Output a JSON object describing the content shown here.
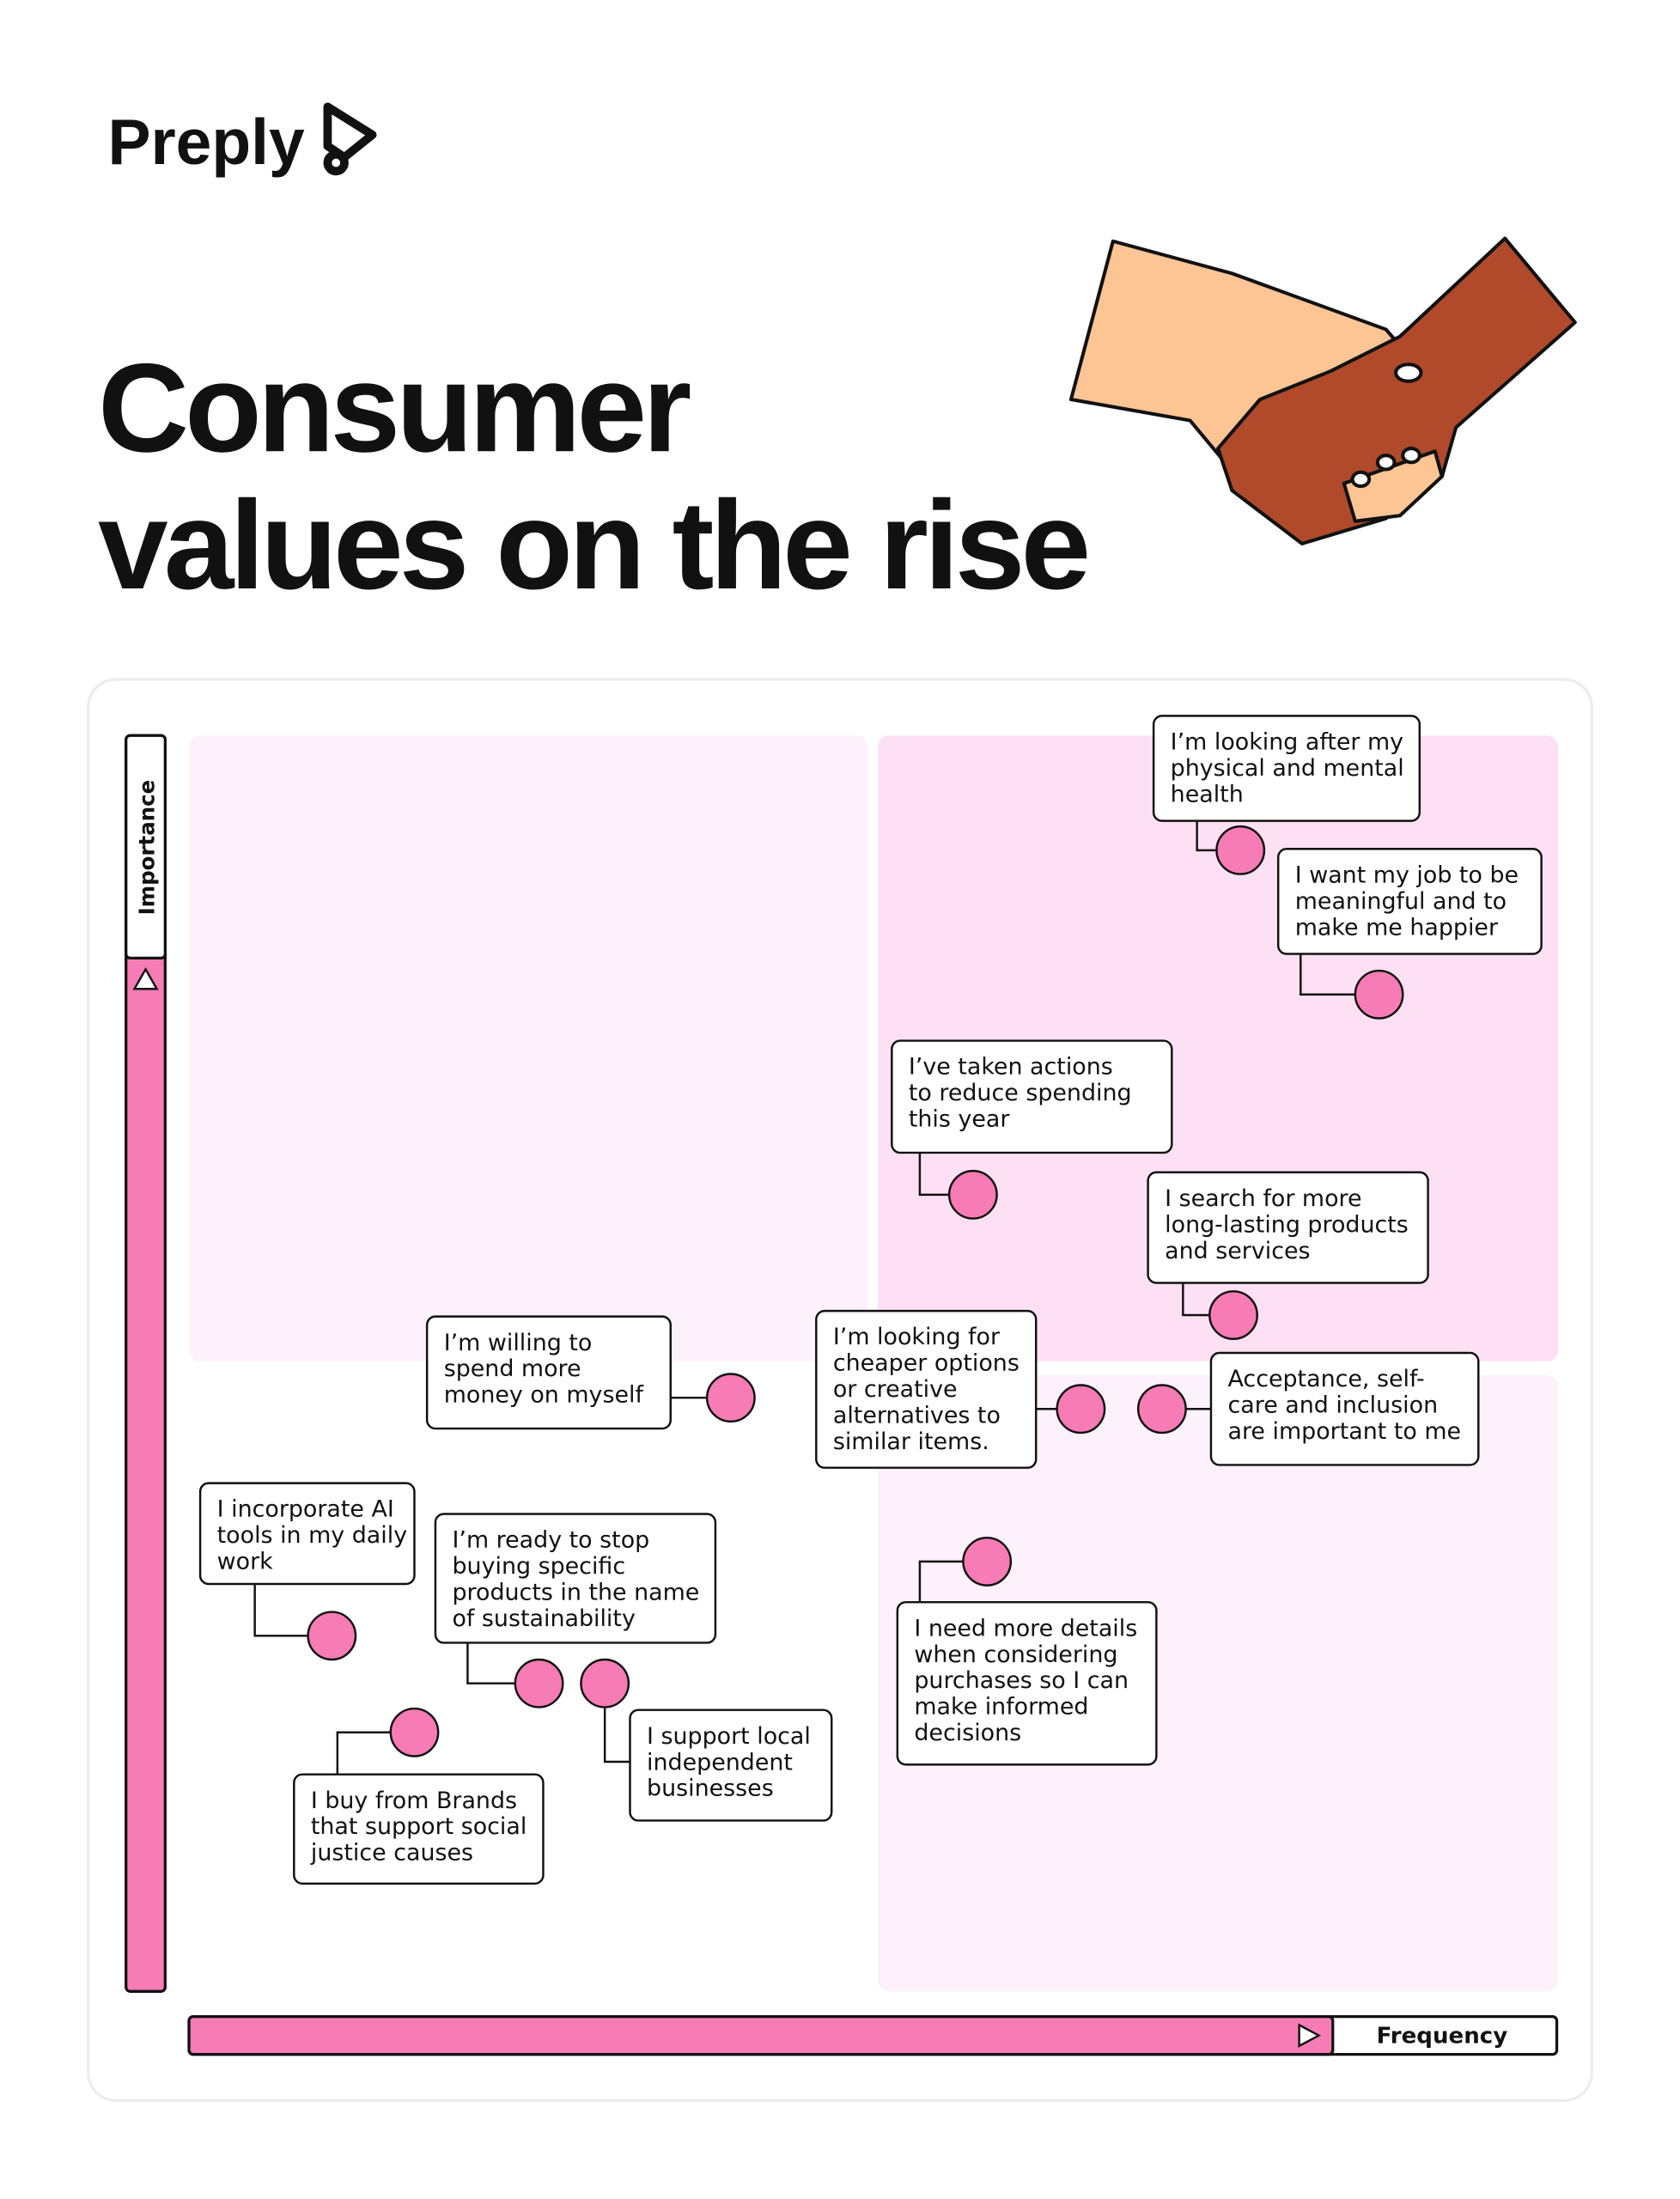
{
  "header": {
    "logo": "Preply",
    "title_lines": [
      "Consumer",
      "values on the rise"
    ]
  },
  "axes": {
    "y_label": "Importance",
    "x_label": "Frequency"
  },
  "statements": [
    {
      "lines": [
        "I’m looking after my",
        "physical and mental",
        "health"
      ]
    },
    {
      "lines": [
        "I want my job to be",
        "meaningful and to",
        "make me happier"
      ]
    },
    {
      "lines": [
        "I’ve taken actions",
        "to reduce spending",
        "this year"
      ]
    },
    {
      "lines": [
        "I search for more",
        "long-lasting products",
        "and services"
      ]
    },
    {
      "lines": [
        "I’m willing to",
        "spend more",
        "money on myself"
      ]
    },
    {
      "lines": [
        "I’m looking for",
        "cheaper options",
        "or creative",
        "alternatives to",
        "similar items."
      ]
    },
    {
      "lines": [
        "Acceptance, self-",
        "care and inclusion",
        "are important to me"
      ]
    },
    {
      "lines": [
        "I need more details",
        "when considering",
        "purchases so I can",
        "make informed",
        "decisions"
      ]
    },
    {
      "lines": [
        "I incorporate AI",
        "tools in my daily",
        "work"
      ]
    },
    {
      "lines": [
        "I’m ready to stop",
        "buying specific",
        "products in the name",
        "of sustainability"
      ]
    },
    {
      "lines": [
        "I support local",
        "independent",
        "businesses"
      ]
    },
    {
      "lines": [
        "I buy from Brands",
        "that support social",
        "justice causes"
      ]
    }
  ]
}
